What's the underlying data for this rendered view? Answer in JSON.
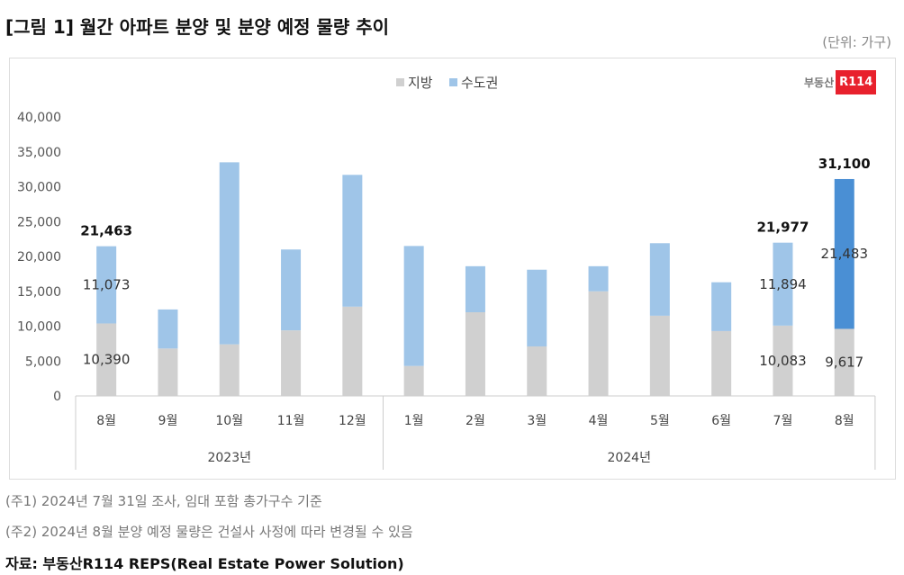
{
  "title": "[그림 1] 월간 아파트 분양 및 분양 예정 물량 추이",
  "unit": "(단위: 가구)",
  "logo": {
    "text": "부동산",
    "badge": "R114"
  },
  "notes": [
    "(주1) 2024년 7월 31일 조사, 임대 포함 총가구수 기준",
    "(주2) 2024년 8월 분양 예정 물량은 건설사 사정에 따라 변경될 수 있음"
  ],
  "source": "자료: 부동산R114 REPS(Real Estate Power Solution)",
  "chart_data": {
    "type": "bar",
    "stacked": true,
    "categories": [
      "8월",
      "9월",
      "10월",
      "11월",
      "12월",
      "1월",
      "2월",
      "3월",
      "4월",
      "5월",
      "6월",
      "7월",
      "8월"
    ],
    "groups": [
      {
        "label": "2023년",
        "count": 5
      },
      {
        "label": "2024년",
        "count": 8
      }
    ],
    "series": [
      {
        "name": "지방",
        "color": "#d0d0d0",
        "values": [
          10390,
          6800,
          7400,
          9400,
          12800,
          4300,
          12000,
          7100,
          15000,
          11500,
          9300,
          10083,
          9617
        ]
      },
      {
        "name": "수도권",
        "color": "#9fc5e8",
        "highlight_last": "#4a8fd4",
        "values": [
          11073,
          5600,
          26100,
          11600,
          18900,
          17200,
          6600,
          11000,
          3600,
          10400,
          7000,
          11894,
          21483
        ]
      }
    ],
    "segment_labels": {
      "0": [
        "10,390",
        "11,073"
      ],
      "11": [
        "10,083",
        "11,894"
      ],
      "12": [
        "9,617",
        "21,483"
      ]
    },
    "total_labels": {
      "0": "21,463",
      "11": "21,977",
      "12": "31,100"
    },
    "ylim": [
      0,
      40000
    ],
    "yticks": [
      "0",
      "5,000",
      "10,000",
      "15,000",
      "20,000",
      "25,000",
      "30,000",
      "35,000",
      "40,000"
    ],
    "legend": "top-center",
    "grid": false
  }
}
